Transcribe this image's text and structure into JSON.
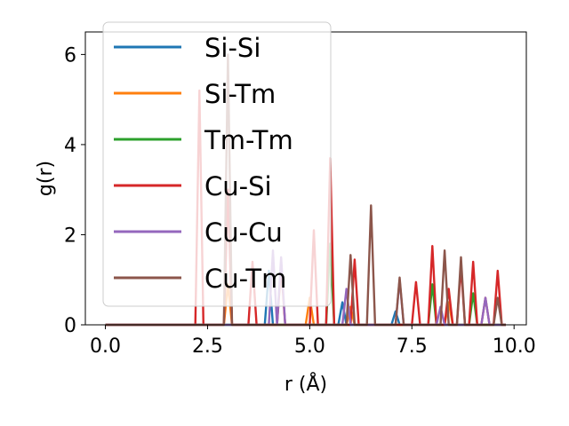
{
  "chart_data": {
    "type": "line",
    "title": "",
    "xlabel": "r (Å)",
    "ylabel": "g(r)",
    "xlim": [
      -0.49,
      10.3
    ],
    "ylim": [
      0,
      6.5
    ],
    "xticks": [
      0.0,
      2.5,
      5.0,
      7.5,
      10.0
    ],
    "xtick_labels": [
      "0.0",
      "2.5",
      "5.0",
      "7.5",
      "10.0"
    ],
    "yticks": [
      0,
      2,
      4,
      6
    ],
    "ytick_labels": [
      "0",
      "2",
      "4",
      "6"
    ],
    "grid": false,
    "legend_position": "upper-left",
    "series": [
      {
        "name": "Si-Si",
        "color": "#1f77b4",
        "x": [
          0.0,
          3.9,
          4.0,
          4.1,
          5.7,
          5.8,
          5.9,
          7.0,
          7.1,
          7.2,
          9.8
        ],
        "y": [
          0,
          0,
          1.2,
          0,
          0,
          0.5,
          0,
          0,
          0.3,
          0,
          0
        ]
      },
      {
        "name": "Si-Tm",
        "color": "#ff7f0e",
        "x": [
          0.0,
          2.9,
          3.0,
          3.1,
          4.9,
          5.0,
          5.1,
          5.9,
          6.0,
          6.1,
          8.3,
          8.4,
          8.5,
          9.8
        ],
        "y": [
          0,
          0,
          0.9,
          0,
          0,
          0.6,
          0,
          0,
          0.4,
          0,
          0,
          0.5,
          0,
          0
        ]
      },
      {
        "name": "Tm-Tm",
        "color": "#2ca02c",
        "x": [
          0.0,
          5.4,
          5.5,
          5.6,
          7.9,
          8.0,
          8.1,
          8.9,
          9.0,
          9.1,
          9.8
        ],
        "y": [
          0,
          0,
          1.8,
          0,
          0,
          0.9,
          0,
          0,
          0.7,
          0,
          0
        ]
      },
      {
        "name": "Cu-Si",
        "color": "#d62728",
        "x": [
          0.0,
          2.2,
          2.3,
          2.4,
          2.9,
          3.0,
          3.1,
          3.5,
          3.6,
          3.7,
          4.2,
          4.3,
          4.4,
          5.0,
          5.1,
          5.2,
          5.4,
          5.5,
          5.6,
          6.0,
          6.1,
          6.2,
          7.5,
          7.6,
          7.7,
          7.9,
          8.0,
          8.1,
          8.3,
          8.4,
          8.5,
          8.6,
          8.7,
          8.8,
          8.9,
          9.0,
          9.1,
          9.2,
          9.3,
          9.4,
          9.5,
          9.6,
          9.7,
          9.8
        ],
        "y": [
          0,
          0,
          5.2,
          0,
          0,
          3.0,
          0,
          0,
          1.4,
          0,
          0,
          1.3,
          0,
          0,
          2.1,
          0,
          0,
          3.7,
          0,
          0,
          1.45,
          0,
          0,
          0.95,
          0,
          0,
          1.75,
          0,
          0,
          0.8,
          0,
          0,
          1.3,
          0,
          0,
          1.4,
          0,
          0,
          0.6,
          0,
          0,
          1.2,
          0,
          0
        ]
      },
      {
        "name": "Cu-Cu",
        "color": "#9467bd",
        "x": [
          0.0,
          4.0,
          4.1,
          4.2,
          4.3,
          4.4,
          5.8,
          5.9,
          6.0,
          7.1,
          7.2,
          7.3,
          8.1,
          8.2,
          8.3,
          9.2,
          9.3,
          9.4,
          9.8
        ],
        "y": [
          0,
          0,
          1.65,
          0,
          1.5,
          0,
          0,
          0.8,
          0,
          0,
          1.0,
          0,
          0,
          0.4,
          0,
          0,
          0.6,
          0,
          0
        ]
      },
      {
        "name": "Cu-Tm",
        "color": "#8c564b",
        "x": [
          0.0,
          2.9,
          3.0,
          3.1,
          5.9,
          6.0,
          6.1,
          6.4,
          6.5,
          6.6,
          7.1,
          7.2,
          7.3,
          8.2,
          8.3,
          8.4,
          8.6,
          8.7,
          8.8,
          9.5,
          9.6,
          9.7,
          9.8
        ],
        "y": [
          0,
          0,
          6.0,
          0,
          0,
          1.55,
          0,
          0,
          2.65,
          0,
          0,
          1.05,
          0,
          0,
          1.65,
          0,
          0,
          1.5,
          0,
          0,
          0.6,
          0,
          0
        ]
      }
    ]
  }
}
